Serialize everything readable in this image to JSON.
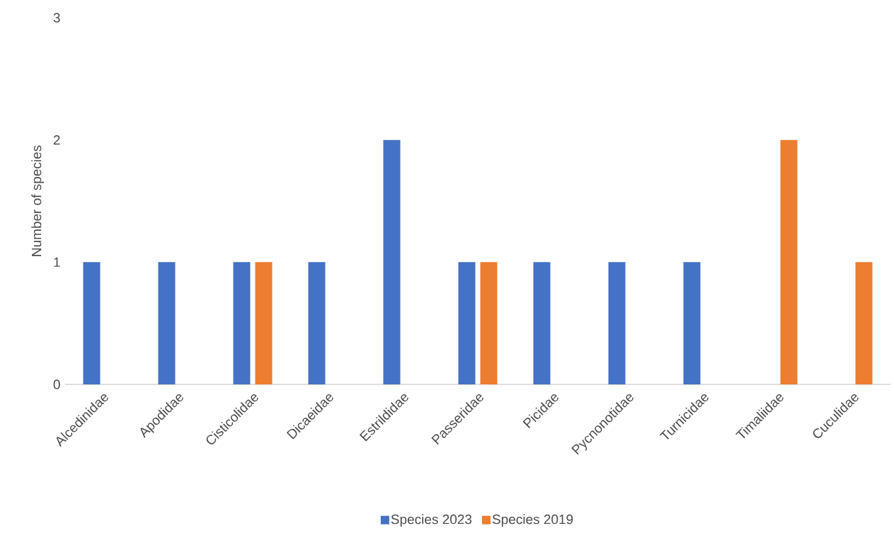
{
  "chart_data": {
    "type": "bar",
    "ylabel": "Number of species",
    "categories": [
      "Alcedinidae",
      "Apodidae",
      "Cisticolidae",
      "Dicaeidae",
      "Estrildidae",
      "Passeridae",
      "Picidae",
      "Pycnonotidae",
      "Turnicidae",
      "Timaliidae",
      "Cuculidae"
    ],
    "series": [
      {
        "name": "Species 2023",
        "color": "#4472c4",
        "values": [
          1,
          1,
          1,
          1,
          2,
          1,
          1,
          1,
          1,
          0,
          0
        ]
      },
      {
        "name": "Species 2019",
        "color": "#ed7d31",
        "values": [
          0,
          0,
          1,
          0,
          0,
          1,
          0,
          0,
          0,
          2,
          1
        ]
      }
    ],
    "ylim": [
      0,
      3
    ],
    "yticks": [
      0,
      1,
      2,
      3
    ],
    "grid": false,
    "legend": "bottom"
  }
}
